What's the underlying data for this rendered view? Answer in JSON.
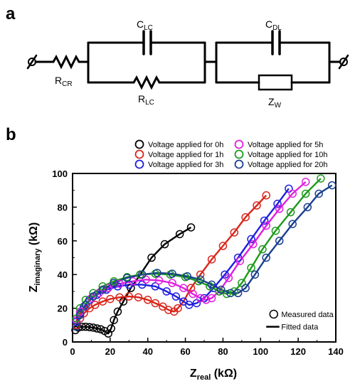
{
  "panel_a": {
    "label": "a",
    "components": {
      "r_cr": {
        "main": "R",
        "sub": "CR"
      },
      "c_lc": {
        "main": "C",
        "sub": "LC"
      },
      "r_lc": {
        "main": "R",
        "sub": "LC"
      },
      "c_dl": {
        "main": "C",
        "sub": "DL"
      },
      "z_w": {
        "main": "Z",
        "sub": "W"
      }
    }
  },
  "panel_b": {
    "label": "b"
  },
  "colors": {
    "0h": "#000000",
    "1h": "#d9261c",
    "3h": "#1f1fe0",
    "5h": "#e020e0",
    "10h": "#1d9a1d",
    "20h": "#1b3f8f"
  },
  "chart_data": {
    "type": "scatter",
    "xlabel": {
      "main": "Z",
      "sub": "real",
      "unit": " (kΩ)"
    },
    "ylabel": {
      "main": "Z",
      "sub": "imaginary",
      "unit": " (kΩ)"
    },
    "xlim": [
      0,
      140
    ],
    "ylim": [
      0,
      100
    ],
    "xticks": [
      0,
      20,
      40,
      60,
      80,
      100,
      120,
      140
    ],
    "yticks": [
      0,
      20,
      40,
      60,
      80,
      100
    ],
    "legend_key": {
      "measured": "Measured data",
      "fitted": "Fitted data"
    },
    "series": [
      {
        "key": "0h",
        "name": "Voltage applied for 0h",
        "x": [
          1.5,
          3,
          5,
          7,
          9,
          11,
          13,
          15,
          17,
          19,
          20.5,
          22,
          24,
          27,
          31,
          36,
          42,
          49,
          57,
          63
        ],
        "y": [
          7,
          8.5,
          9,
          9,
          8.8,
          8.5,
          8,
          7.5,
          6.5,
          5,
          8,
          13,
          18,
          24,
          32,
          40,
          50,
          58,
          64,
          68
        ]
      },
      {
        "key": "1h",
        "name": "Voltage applied for 1h",
        "x": [
          2,
          4,
          6,
          9,
          12,
          16,
          20,
          25,
          30,
          35,
          40,
          44,
          48,
          51,
          54,
          56,
          59,
          63,
          68,
          74,
          80,
          86,
          92,
          98,
          103
        ],
        "y": [
          10,
          14,
          17,
          20,
          22,
          24,
          25.5,
          26.5,
          27,
          26.5,
          25,
          23,
          21,
          19,
          18,
          20,
          24,
          32,
          40,
          49,
          57,
          65,
          74,
          81,
          87
        ]
      },
      {
        "key": "3h",
        "name": "Voltage applied for 3h",
        "x": [
          2,
          4,
          6,
          9,
          13,
          18,
          24,
          30,
          37,
          44,
          50,
          55,
          59,
          62,
          66,
          70,
          75,
          81,
          88,
          95,
          102,
          109,
          115
        ],
        "y": [
          12,
          17,
          21,
          25,
          28,
          31,
          33,
          34,
          34,
          33,
          30,
          27,
          24,
          22,
          23,
          26,
          32,
          40,
          50,
          61,
          72,
          82,
          91
        ]
      },
      {
        "key": "5h",
        "name": "Voltage applied for   5h",
        "x": [
          2,
          4,
          7,
          10,
          14,
          19,
          25,
          32,
          39,
          46,
          53,
          59,
          64,
          68,
          71,
          74,
          78,
          83,
          89,
          96,
          103,
          110,
          117,
          124
        ],
        "y": [
          13,
          18,
          22,
          26,
          29,
          32,
          34.5,
          36,
          37,
          36.5,
          35,
          32,
          28.5,
          26,
          25,
          26,
          30,
          38,
          48,
          58,
          69,
          79,
          88,
          95
        ]
      },
      {
        "key": "10h",
        "name": "Voltage applied for 10h",
        "x": [
          2,
          4,
          7,
          11,
          16,
          22,
          29,
          36,
          44,
          52,
          60,
          67,
          73,
          78,
          82,
          86,
          90,
          95,
          101,
          108,
          116,
          124,
          132
        ],
        "y": [
          14,
          20,
          25,
          29,
          33,
          36,
          38.5,
          40,
          40.5,
          40,
          38.5,
          36,
          33,
          30,
          28.5,
          30,
          35,
          44,
          55,
          66,
          77,
          88,
          97
        ]
      },
      {
        "key": "20h",
        "name": "Voltage applied for 20h",
        "x": [
          2,
          4,
          7,
          11,
          16,
          22,
          29,
          37,
          45,
          53,
          61,
          68,
          74,
          79,
          84,
          88,
          92,
          97,
          103,
          110,
          117,
          125,
          131,
          138
        ],
        "y": [
          9,
          16,
          22,
          27,
          31,
          35,
          38,
          40,
          41,
          40.5,
          39,
          37,
          34,
          31,
          29,
          29,
          32,
          40,
          50,
          60,
          70,
          80,
          88,
          93
        ]
      }
    ]
  }
}
